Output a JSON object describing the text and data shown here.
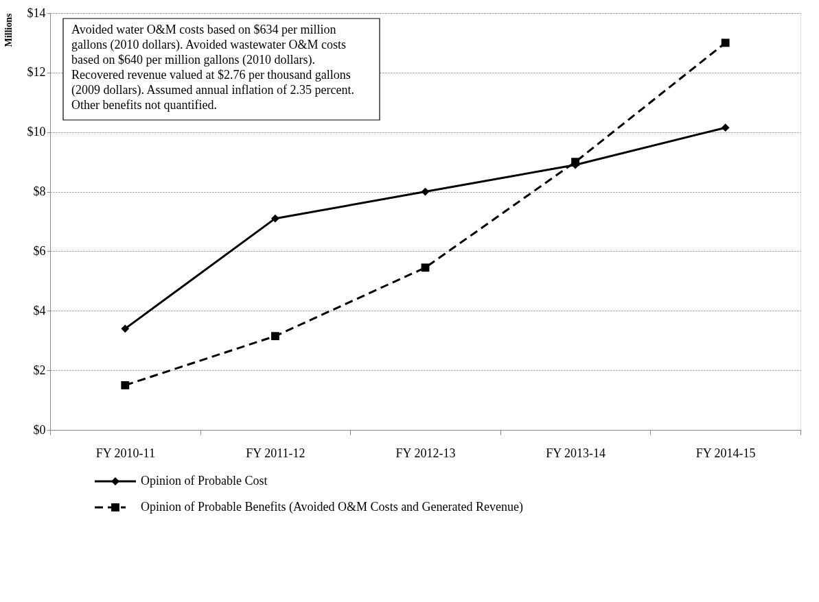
{
  "chart_data": {
    "type": "line",
    "ylabel": "Millions",
    "categories": [
      "FY 2010-11",
      "FY 2011-12",
      "FY 2012-13",
      "FY 2013-14",
      "FY 2014-15"
    ],
    "series": [
      {
        "name": "Opinion of Probable Cost",
        "color": "#000000",
        "marker": "diamond",
        "line_style": "solid",
        "values": [
          3.4,
          7.1,
          8.0,
          8.9,
          10.15
        ]
      },
      {
        "name": "Opinion of Probable Benefits  (Avoided O&M Costs and Generated Revenue)",
        "color": "#000000",
        "marker": "square",
        "line_style": "dashed",
        "values": [
          1.5,
          3.15,
          5.45,
          9.0,
          13.0
        ]
      }
    ],
    "ylim": [
      0,
      14
    ],
    "yticks": [
      {
        "value": 0,
        "label": "$0"
      },
      {
        "value": 2,
        "label": "$2"
      },
      {
        "value": 4,
        "label": "$4"
      },
      {
        "value": 6,
        "label": "$6"
      },
      {
        "value": 8,
        "label": "$8"
      },
      {
        "value": 10,
        "label": "$10"
      },
      {
        "value": 12,
        "label": "$12"
      },
      {
        "value": 14,
        "label": "$14"
      }
    ],
    "grid": "y",
    "legend": "bottom",
    "annotations": [
      "Avoided water O&M costs based on $634 per million\ngallons (2010 dollars). Avoided wastewater O&M costs\nbased on $640 per million  gallons (2010 dollars).\nRecovered revenue valued at $2.76 per thousand gallons\n(2009 dollars). Assumed annual inflation of 2.35 percent.\nOther benefits not quantified."
    ]
  }
}
